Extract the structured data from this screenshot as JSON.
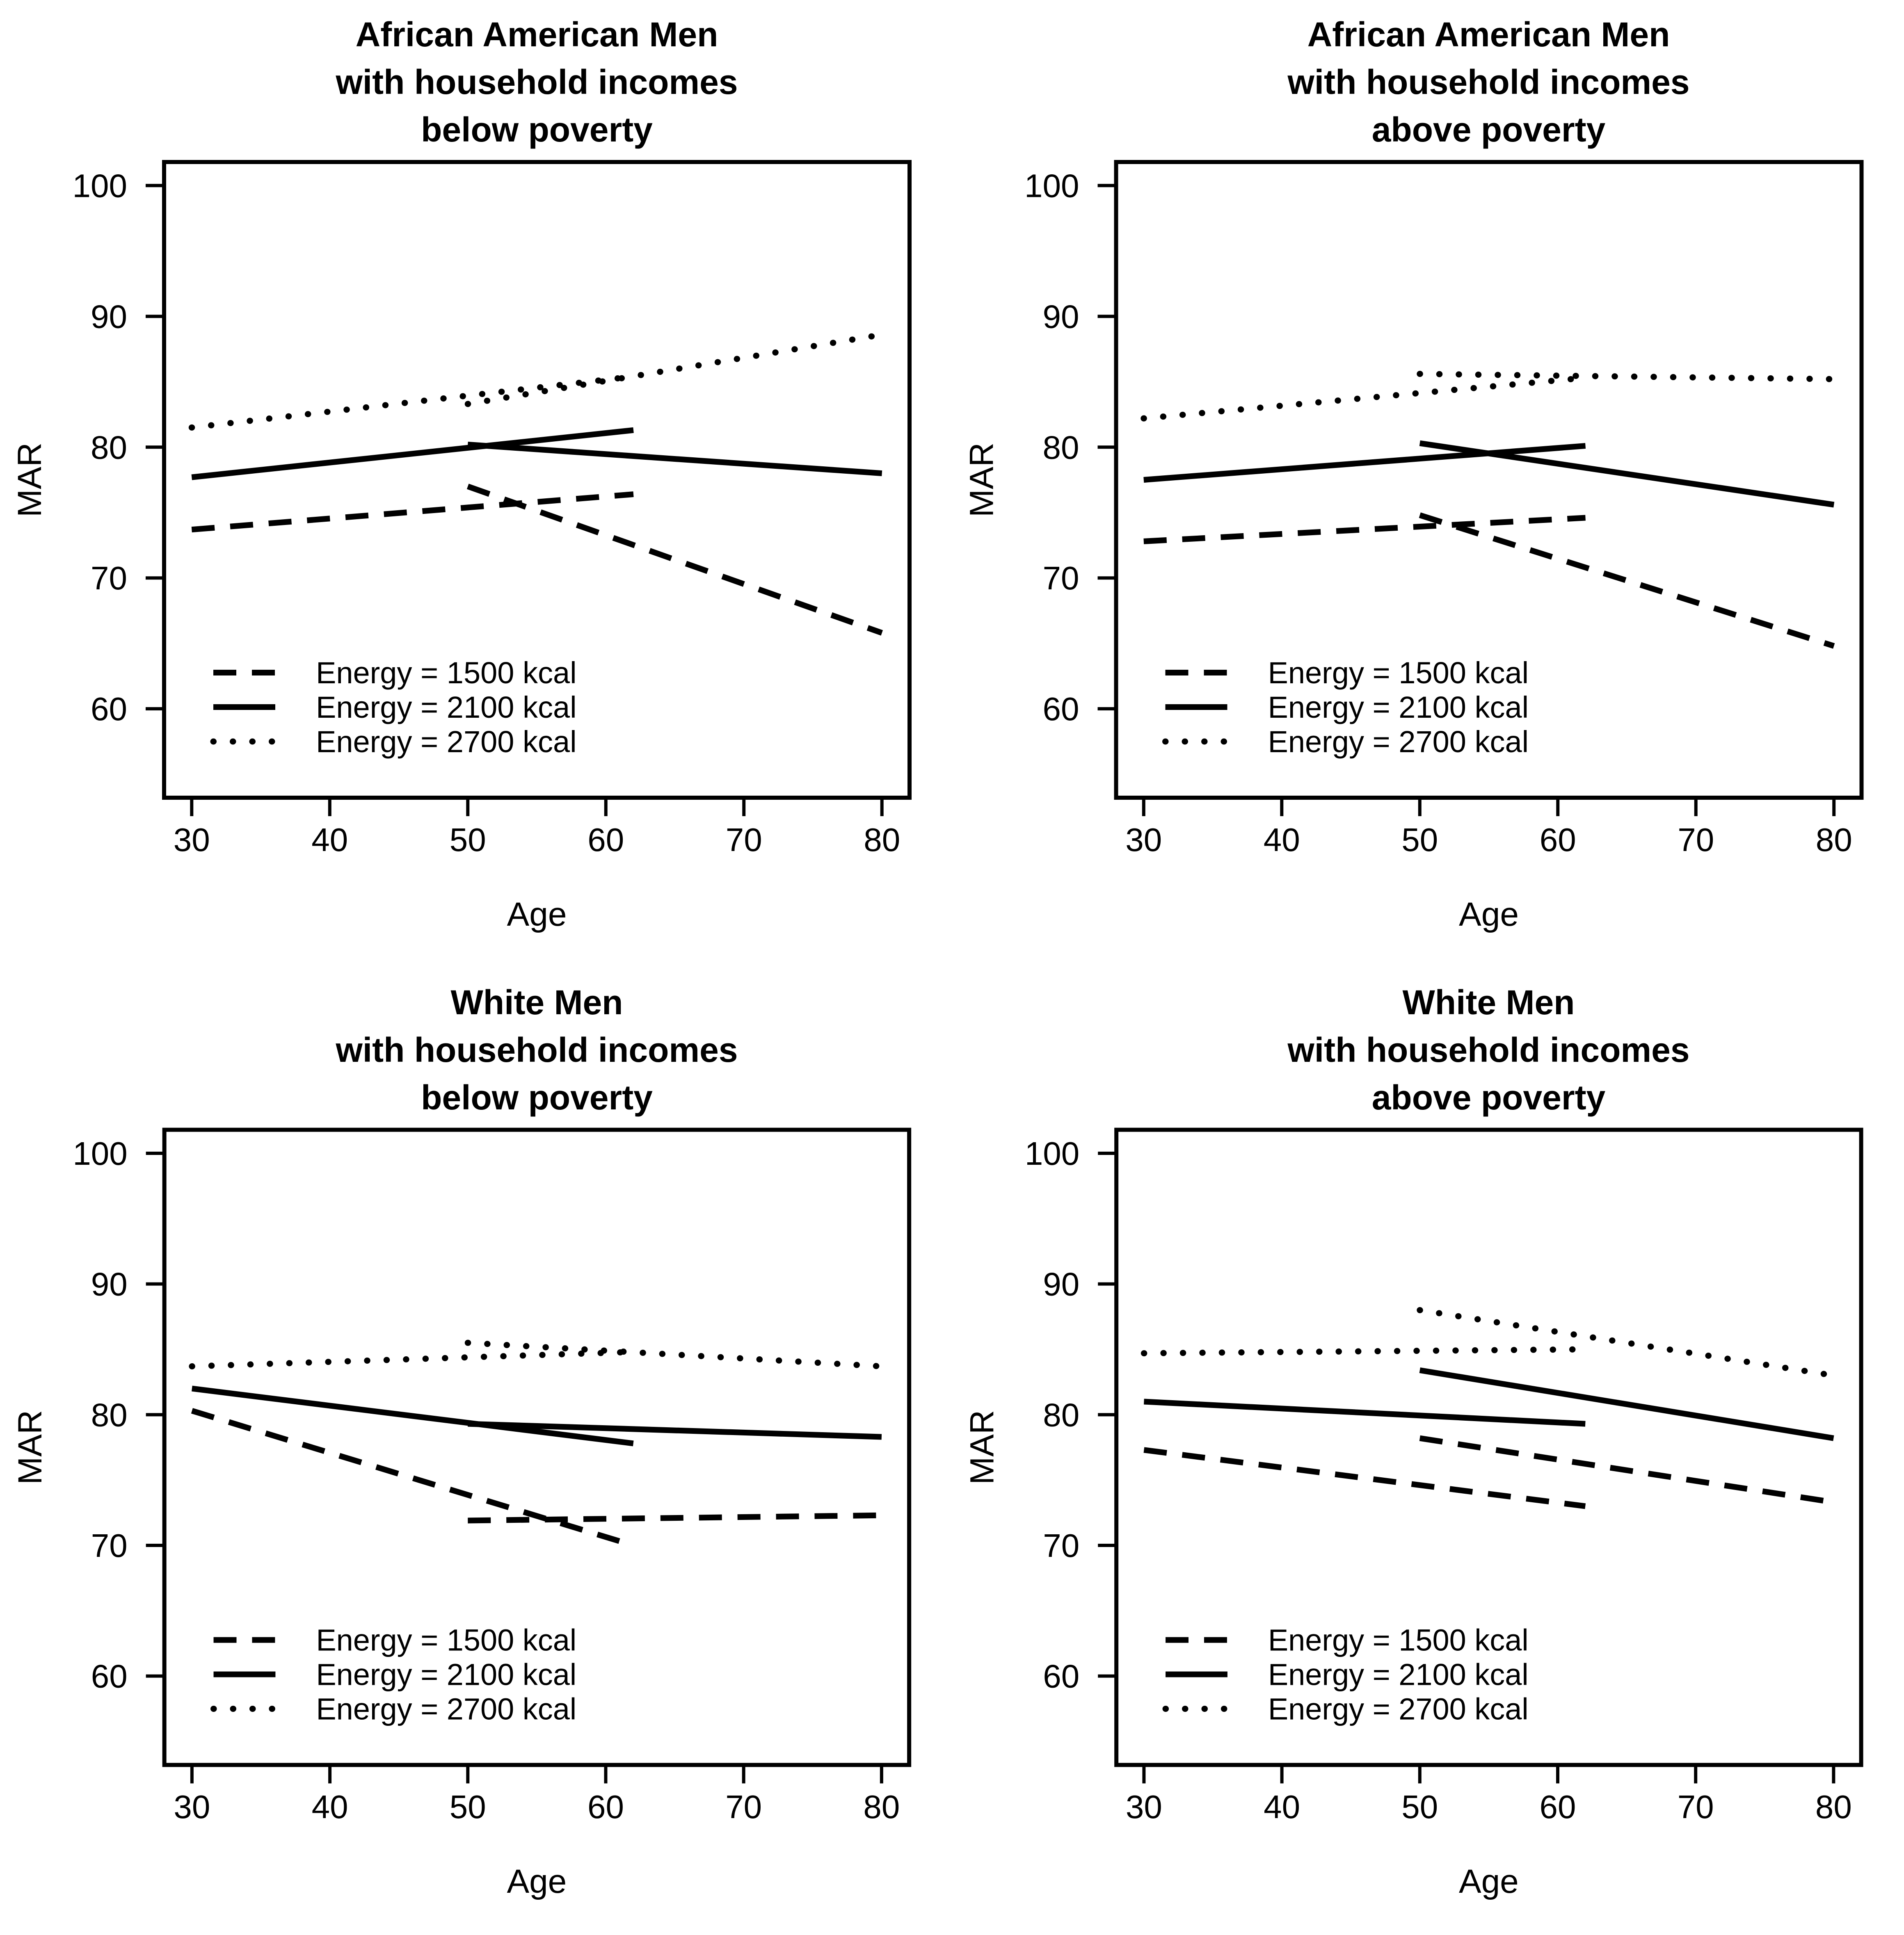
{
  "page": {
    "background": "#ffffff",
    "foreground": "#000000"
  },
  "chart_data": [
    {
      "type": "line",
      "title_lines": [
        "African American Men",
        "with household incomes",
        "below poverty"
      ],
      "xlabel": "Age",
      "ylabel": "MAR",
      "xlim": [
        28,
        82
      ],
      "ylim": [
        53.2,
        101.8
      ],
      "x_ticks": [
        30,
        40,
        50,
        60,
        70,
        80
      ],
      "y_ticks": [
        60,
        70,
        80,
        90,
        100
      ],
      "grid": false,
      "legend_position": "bottom-left",
      "legend": [
        {
          "label": "Energy = 1500 kcal",
          "style": "dashed"
        },
        {
          "label": "Energy = 2100 kcal",
          "style": "solid"
        },
        {
          "label": "Energy = 2700 kcal",
          "style": "dotted"
        }
      ],
      "series": [
        {
          "name": "Energy = 1500 kcal",
          "style": "dashed",
          "segments": [
            {
              "x": [
                30,
                62
              ],
              "y": [
                73.7,
                76.4
              ]
            },
            {
              "x": [
                50,
                80
              ],
              "y": [
                77.0,
                65.8
              ]
            }
          ]
        },
        {
          "name": "Energy = 2100 kcal",
          "style": "solid",
          "segments": [
            {
              "x": [
                30,
                62
              ],
              "y": [
                77.7,
                81.3
              ]
            },
            {
              "x": [
                50,
                80
              ],
              "y": [
                80.2,
                78.0
              ]
            }
          ]
        },
        {
          "name": "Energy = 2700 kcal",
          "style": "dotted",
          "segments": [
            {
              "x": [
                30,
                62
              ],
              "y": [
                81.5,
                85.4
              ]
            },
            {
              "x": [
                50,
                80
              ],
              "y": [
                83.3,
                88.6
              ]
            }
          ]
        }
      ]
    },
    {
      "type": "line",
      "title_lines": [
        "African American Men",
        "with household incomes",
        "above poverty"
      ],
      "xlabel": "Age",
      "ylabel": "MAR",
      "xlim": [
        28,
        82
      ],
      "ylim": [
        53.2,
        101.8
      ],
      "x_ticks": [
        30,
        40,
        50,
        60,
        70,
        80
      ],
      "y_ticks": [
        60,
        70,
        80,
        90,
        100
      ],
      "grid": false,
      "legend_position": "bottom-left",
      "legend": [
        {
          "label": "Energy = 1500 kcal",
          "style": "dashed"
        },
        {
          "label": "Energy = 2100 kcal",
          "style": "solid"
        },
        {
          "label": "Energy = 2700 kcal",
          "style": "dotted"
        }
      ],
      "series": [
        {
          "name": "Energy = 1500 kcal",
          "style": "dashed",
          "segments": [
            {
              "x": [
                30,
                62
              ],
              "y": [
                72.8,
                74.6
              ]
            },
            {
              "x": [
                50,
                80
              ],
              "y": [
                74.8,
                64.8
              ]
            }
          ]
        },
        {
          "name": "Energy = 2100 kcal",
          "style": "solid",
          "segments": [
            {
              "x": [
                30,
                62
              ],
              "y": [
                77.5,
                80.1
              ]
            },
            {
              "x": [
                50,
                80
              ],
              "y": [
                80.3,
                75.6
              ]
            }
          ]
        },
        {
          "name": "Energy = 2700 kcal",
          "style": "dotted",
          "segments": [
            {
              "x": [
                30,
                62
              ],
              "y": [
                82.2,
                85.3
              ]
            },
            {
              "x": [
                50,
                80
              ],
              "y": [
                85.6,
                85.2
              ]
            }
          ]
        }
      ]
    },
    {
      "type": "line",
      "title_lines": [
        "White Men",
        "with household incomes",
        "below poverty"
      ],
      "xlabel": "Age",
      "ylabel": "MAR",
      "xlim": [
        28,
        82
      ],
      "ylim": [
        53.2,
        101.8
      ],
      "x_ticks": [
        30,
        40,
        50,
        60,
        70,
        80
      ],
      "y_ticks": [
        60,
        70,
        80,
        90,
        100
      ],
      "grid": false,
      "legend_position": "bottom-left",
      "legend": [
        {
          "label": "Energy = 1500 kcal",
          "style": "dashed"
        },
        {
          "label": "Energy = 2100 kcal",
          "style": "solid"
        },
        {
          "label": "Energy = 2700 kcal",
          "style": "dotted"
        }
      ],
      "series": [
        {
          "name": "Energy = 1500 kcal",
          "style": "dashed",
          "segments": [
            {
              "x": [
                30,
                62
              ],
              "y": [
                80.3,
                70.0
              ]
            },
            {
              "x": [
                50,
                80
              ],
              "y": [
                71.9,
                72.3
              ]
            }
          ]
        },
        {
          "name": "Energy = 2100 kcal",
          "style": "solid",
          "segments": [
            {
              "x": [
                30,
                62
              ],
              "y": [
                82.0,
                77.8
              ]
            },
            {
              "x": [
                50,
                80
              ],
              "y": [
                79.3,
                78.3
              ]
            }
          ]
        },
        {
          "name": "Energy = 2700 kcal",
          "style": "dotted",
          "segments": [
            {
              "x": [
                30,
                62
              ],
              "y": [
                83.7,
                84.8
              ]
            },
            {
              "x": [
                50,
                80
              ],
              "y": [
                85.5,
                83.7
              ]
            }
          ]
        }
      ]
    },
    {
      "type": "line",
      "title_lines": [
        "White Men",
        "with household incomes",
        "above poverty"
      ],
      "xlabel": "Age",
      "ylabel": "MAR",
      "xlim": [
        28,
        82
      ],
      "ylim": [
        53.2,
        101.8
      ],
      "x_ticks": [
        30,
        40,
        50,
        60,
        70,
        80
      ],
      "y_ticks": [
        60,
        70,
        80,
        90,
        100
      ],
      "grid": false,
      "legend_position": "bottom-left",
      "legend": [
        {
          "label": "Energy = 1500 kcal",
          "style": "dashed"
        },
        {
          "label": "Energy = 2100 kcal",
          "style": "solid"
        },
        {
          "label": "Energy = 2700 kcal",
          "style": "dotted"
        }
      ],
      "series": [
        {
          "name": "Energy = 1500 kcal",
          "style": "dashed",
          "segments": [
            {
              "x": [
                30,
                62
              ],
              "y": [
                77.3,
                73.0
              ]
            },
            {
              "x": [
                50,
                80
              ],
              "y": [
                78.2,
                73.3
              ]
            }
          ]
        },
        {
          "name": "Energy = 2100 kcal",
          "style": "solid",
          "segments": [
            {
              "x": [
                30,
                62
              ],
              "y": [
                81.0,
                79.3
              ]
            },
            {
              "x": [
                50,
                80
              ],
              "y": [
                83.4,
                78.2
              ]
            }
          ]
        },
        {
          "name": "Energy = 2700 kcal",
          "style": "dotted",
          "segments": [
            {
              "x": [
                30,
                62
              ],
              "y": [
                84.7,
                85.0
              ]
            },
            {
              "x": [
                50,
                80
              ],
              "y": [
                88.0,
                83.0
              ]
            }
          ]
        }
      ]
    }
  ]
}
